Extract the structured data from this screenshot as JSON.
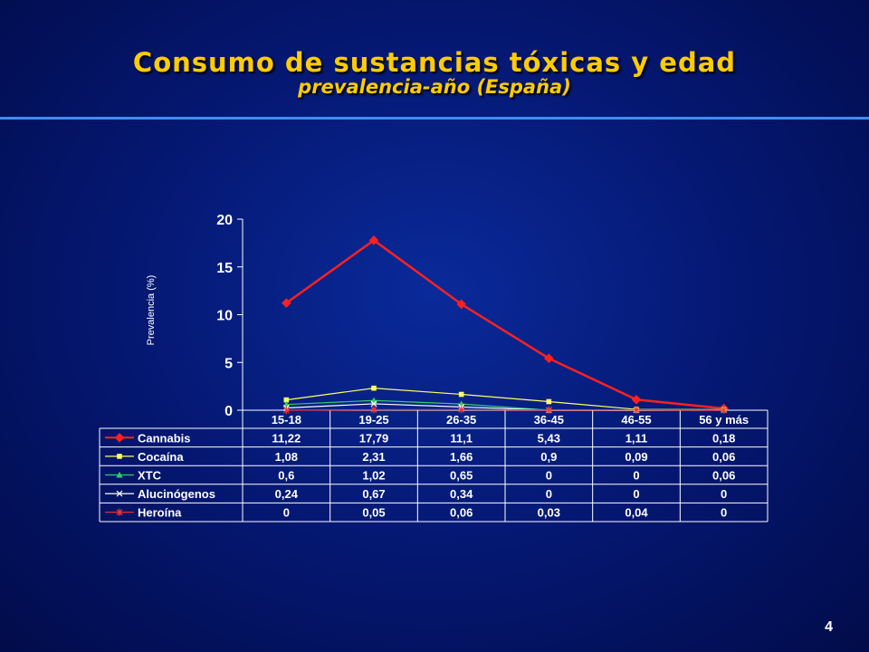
{
  "slide": {
    "title": "Consumo de sustancias tóxicas y edad",
    "subtitle": "prevalencia-año (España)",
    "page_number": "4"
  },
  "colors": {
    "title": "#ffcc00",
    "rule": "#3b8ff0",
    "axis": "#ffffff",
    "Cannabis": "#ff2020",
    "Cocaína": "#ffff66",
    "XTC": "#33cc66",
    "Alucinógenos": "#ffffff",
    "Heroína": "#ff3333"
  },
  "chart_data": {
    "type": "line",
    "ylabel": "Prevalencia (%)",
    "ylim": [
      0,
      20
    ],
    "yticks": [
      0,
      5,
      10,
      15,
      20
    ],
    "categories": [
      "15-18",
      "19-25",
      "26-35",
      "36-45",
      "46-55",
      "56 y más"
    ],
    "series": [
      {
        "name": "Cannabis",
        "marker": "diamond",
        "values": [
          11.22,
          17.79,
          11.1,
          5.43,
          1.11,
          0.18
        ],
        "labels": [
          "11,22",
          "17,79",
          "11,1",
          "5,43",
          "1,11",
          "0,18"
        ]
      },
      {
        "name": "Cocaína",
        "marker": "square",
        "values": [
          1.08,
          2.31,
          1.66,
          0.9,
          0.09,
          0.06
        ],
        "labels": [
          "1,08",
          "2,31",
          "1,66",
          "0,9",
          "0,09",
          "0,06"
        ]
      },
      {
        "name": "XTC",
        "marker": "triangle",
        "values": [
          0.6,
          1.02,
          0.65,
          0,
          0,
          0.06
        ],
        "labels": [
          "0,6",
          "1,02",
          "0,65",
          "0",
          "0",
          "0,06"
        ]
      },
      {
        "name": "Alucinógenos",
        "marker": "x",
        "values": [
          0.24,
          0.67,
          0.34,
          0,
          0,
          0
        ],
        "labels": [
          "0,24",
          "0,67",
          "0,34",
          "0",
          "0",
          "0"
        ]
      },
      {
        "name": "Heroína",
        "marker": "star",
        "values": [
          0,
          0.05,
          0.06,
          0.03,
          0.04,
          0
        ],
        "labels": [
          "0",
          "0,05",
          "0,06",
          "0,03",
          "0,04",
          "0"
        ]
      }
    ],
    "grid": false,
    "legend": "data-table"
  }
}
